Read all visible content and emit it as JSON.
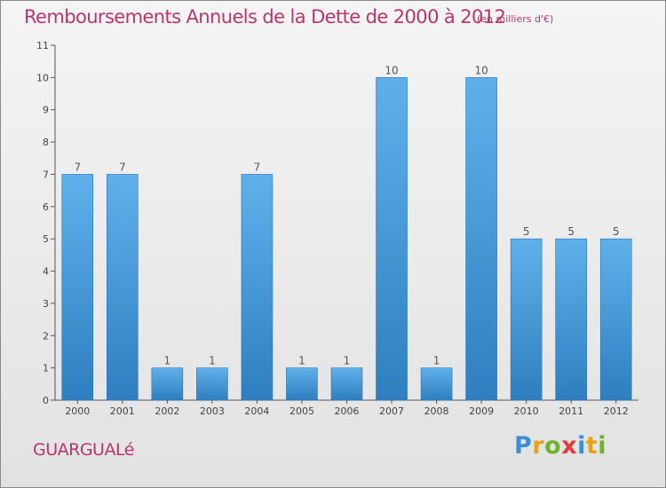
{
  "header": {
    "title": "Remboursements Annuels de la Dette de 2000 à 2012",
    "unit": "(en milliers d'€)"
  },
  "footer": {
    "place": "GUARGUALé",
    "logo": {
      "text": "Proxiti",
      "colors": [
        "#3b8fd6",
        "#e8a317",
        "#6cb42a",
        "#e23b3b",
        "#3b8fd6",
        "#e8a317",
        "#6cb42a"
      ]
    }
  },
  "colors": {
    "title": "#b9366a",
    "bar_light": "#5fb0ea",
    "bar_dark": "#2f7fc0",
    "axis": "#555555"
  },
  "chart_data": {
    "type": "bar",
    "title": "Remboursements Annuels de la Dette de 2000 à 2012",
    "xlabel": "",
    "ylabel": "",
    "categories": [
      "2000",
      "2001",
      "2002",
      "2003",
      "2004",
      "2005",
      "2006",
      "2007",
      "2008",
      "2009",
      "2010",
      "2011",
      "2012"
    ],
    "values": [
      7,
      7,
      1,
      1,
      7,
      1,
      1,
      10,
      1,
      10,
      5,
      5,
      5
    ],
    "ylim": [
      0,
      11
    ],
    "yticks": [
      0,
      1,
      2,
      3,
      4,
      5,
      6,
      7,
      8,
      9,
      10,
      11
    ],
    "grid": false,
    "data_labels": true
  }
}
